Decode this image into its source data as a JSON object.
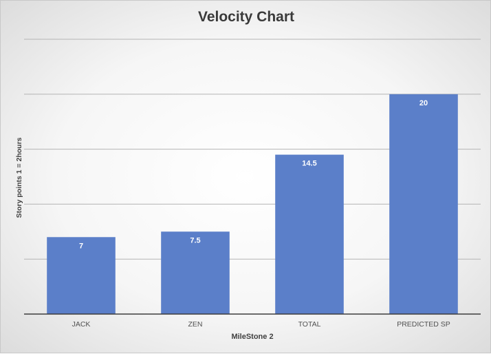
{
  "chart_data": {
    "type": "bar",
    "title": "Velocity Chart",
    "xlabel": "MileStone 2",
    "ylabel": "Story points 1 = 2hours",
    "categories": [
      "JACK",
      "ZEN",
      "TOTAL",
      "PREDICTED SP"
    ],
    "values": [
      7,
      7.5,
      14.5,
      20
    ],
    "data_labels": [
      "7",
      "7.5",
      "14.5",
      "20"
    ],
    "ylim": [
      0,
      25
    ],
    "y_gridlines": [
      5,
      10,
      15,
      20,
      25
    ],
    "y_tick_labels_shown": false,
    "grid": true,
    "legend": "none",
    "bar_color": "#5b7fc9"
  }
}
